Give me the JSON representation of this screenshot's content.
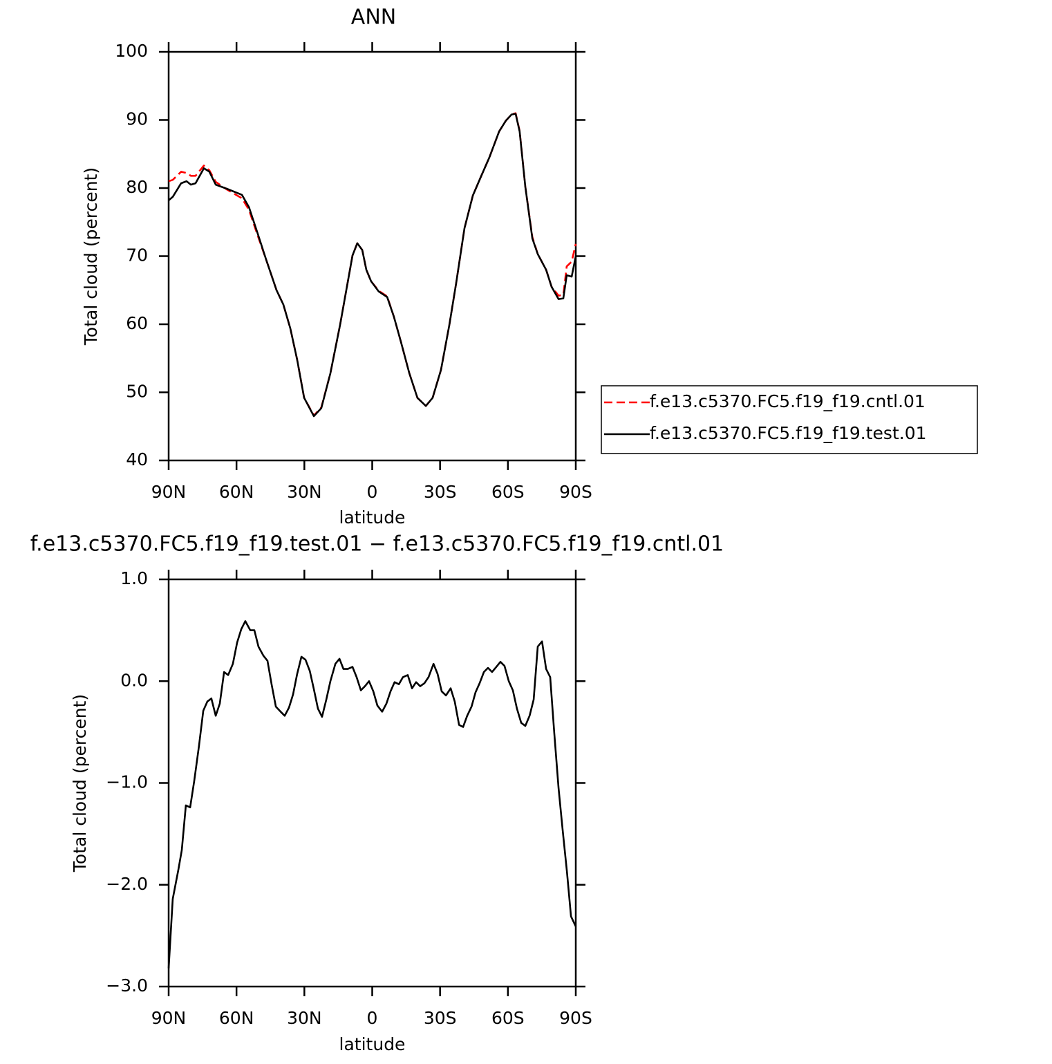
{
  "chart_data": [
    {
      "type": "line",
      "title": "ANN",
      "xlabel": "latitude",
      "ylabel": "Total cloud (percent)",
      "x": [
        90,
        88.2,
        84.5,
        82.1,
        80.2,
        78.1,
        74.4,
        72,
        69.2,
        64.3,
        57.6,
        54.5,
        50.9,
        46.9,
        42.3,
        39.3,
        36.2,
        33.2,
        30.1,
        25.8,
        22.5,
        18.5,
        14.2,
        8.7,
        6.6,
        4.4,
        2.6,
        0.5,
        -2.9,
        -6.6,
        -9.6,
        -12.7,
        -16.4,
        -20,
        -23.7,
        -26.7,
        -30.4,
        -34.1,
        -37.1,
        -40.8,
        -44.5,
        -48.1,
        -51.8,
        -56.1,
        -59.1,
        -61.6,
        -63.4,
        -65.2,
        -67.7,
        -70.8,
        -73.2,
        -76.9,
        -79.3,
        -82.4,
        -84.5,
        -86,
        -88.2,
        -90
      ],
      "series": [
        {
          "name": "f.e13.c5370.FC5.f19_f19.cntl.01",
          "color": "#ff0000",
          "dashed": true,
          "values": [
            81,
            81.2,
            82.4,
            82.2,
            81.8,
            81.8,
            83.3,
            82.6,
            80.9,
            79.8,
            78.5,
            76.8,
            73.3,
            69.5,
            65,
            62.9,
            59.4,
            54.8,
            49.2,
            46.6,
            47.8,
            52.8,
            59.9,
            70.1,
            71.9,
            70.9,
            68,
            66.3,
            64.9,
            64.1,
            61.1,
            57.4,
            52.8,
            49.2,
            48,
            49.2,
            53.3,
            59.9,
            66,
            74.1,
            78.9,
            81.7,
            84.5,
            88.3,
            89.9,
            90.8,
            91,
            88.4,
            80.2,
            72.8,
            70.3,
            68,
            65.5,
            64.2,
            64.3,
            68.5,
            69.2,
            71.8
          ]
        },
        {
          "name": "f.e13.c5370.FC5.f19_f19.test.01",
          "color": "#000000",
          "dashed": false,
          "values": [
            78.2,
            78.7,
            80.7,
            81,
            80.5,
            80.7,
            82.9,
            82.4,
            80.5,
            79.9,
            79,
            77.2,
            73.6,
            69.5,
            65,
            62.9,
            59.4,
            54.8,
            49.2,
            46.5,
            47.7,
            52.8,
            59.9,
            70.1,
            71.9,
            70.9,
            68,
            66.3,
            64.8,
            64,
            61.1,
            57.4,
            52.8,
            49.2,
            48,
            49.2,
            53.3,
            59.9,
            66,
            74.1,
            78.9,
            81.7,
            84.5,
            88.3,
            89.9,
            90.8,
            90.9,
            88.3,
            80.2,
            72.6,
            70.3,
            68,
            65.5,
            63.7,
            63.8,
            67.2,
            67,
            70
          ]
        }
      ],
      "xlim": [
        90,
        -90
      ],
      "xticks": [
        {
          "value": 90,
          "label": "90N"
        },
        {
          "value": 60,
          "label": "60N"
        },
        {
          "value": 30,
          "label": "30N"
        },
        0,
        {
          "value": -30,
          "label": "30S"
        },
        {
          "value": -60,
          "label": "60S"
        },
        {
          "value": -90,
          "label": "90S"
        }
      ],
      "ylim": [
        40,
        100
      ],
      "yticks": [
        40,
        50,
        60,
        70,
        80,
        90,
        100
      ],
      "legend": "right"
    },
    {
      "type": "line",
      "title": "f.e13.c5370.FC5.f19_f19.test.01 − f.e13.c5370.FC5.f19_f19.cntl.01",
      "xlabel": "latitude",
      "ylabel": "Total cloud (percent)",
      "x": [
        90,
        88.2,
        85.7,
        84.2,
        82.4,
        80.5,
        78.7,
        76.6,
        74.7,
        72.9,
        71.1,
        69.2,
        67.4,
        65.5,
        63.7,
        61.6,
        59.7,
        57.9,
        56.1,
        53.9,
        52.1,
        50.3,
        48.1,
        46.3,
        44.5,
        42.6,
        40.5,
        38.7,
        36.8,
        35,
        33.2,
        31.3,
        29.5,
        27.6,
        25.8,
        24,
        22.2,
        20.3,
        18.5,
        16.3,
        14.5,
        12.7,
        10.8,
        8.7,
        6.9,
        5,
        3.2,
        1.4,
        -0.5,
        -2.3,
        -4.4,
        -6.3,
        -8.1,
        -9.9,
        -11.8,
        -13.6,
        -15.7,
        -17.6,
        -19.4,
        -21.2,
        -23.1,
        -24.9,
        -27.1,
        -28.9,
        -30.7,
        -32.6,
        -34.7,
        -36.5,
        -38.4,
        -40.2,
        -42,
        -43.9,
        -45.7,
        -47.5,
        -49.4,
        -51.2,
        -53,
        -54.9,
        -56.7,
        -58.5,
        -60.4,
        -62.2,
        -64,
        -65.9,
        -67.7,
        -69.6,
        -71.4,
        -73.2,
        -75.1,
        -76.9,
        -78.7,
        -80.5,
        -82.4,
        -84.2,
        -86.1,
        -87.9,
        -90
      ],
      "values": [
        -2.82,
        -2.14,
        -1.85,
        -1.66,
        -1.22,
        -1.24,
        -0.98,
        -0.64,
        -0.29,
        -0.2,
        -0.17,
        -0.34,
        -0.22,
        0.09,
        0.06,
        0.17,
        0.38,
        0.51,
        0.59,
        0.5,
        0.5,
        0.34,
        0.25,
        0.2,
        -0.03,
        -0.25,
        -0.3,
        -0.34,
        -0.26,
        -0.13,
        0.07,
        0.24,
        0.21,
        0.1,
        -0.08,
        -0.27,
        -0.35,
        -0.18,
        0,
        0.17,
        0.22,
        0.12,
        0.12,
        0.14,
        0.04,
        -0.09,
        -0.05,
        0,
        -0.1,
        -0.24,
        -0.3,
        -0.22,
        -0.1,
        -0.01,
        -0.03,
        0.04,
        0.06,
        -0.07,
        -0.01,
        -0.05,
        -0.02,
        0.04,
        0.17,
        0.07,
        -0.1,
        -0.14,
        -0.07,
        -0.2,
        -0.43,
        -0.45,
        -0.34,
        -0.25,
        -0.11,
        -0.02,
        0.09,
        0.13,
        0.09,
        0.14,
        0.19,
        0.15,
        0,
        -0.09,
        -0.27,
        -0.41,
        -0.44,
        -0.34,
        -0.18,
        0.34,
        0.39,
        0.12,
        0.04,
        -0.51,
        -1.05,
        -1.46,
        -1.87,
        -2.31,
        -2.41
      ],
      "color": "#000000",
      "xlim": [
        90,
        -90
      ],
      "xticks": [
        {
          "value": 90,
          "label": "90N"
        },
        {
          "value": 60,
          "label": "60N"
        },
        {
          "value": 30,
          "label": "30N"
        },
        0,
        {
          "value": -30,
          "label": "30S"
        },
        {
          "value": -60,
          "label": "60S"
        },
        {
          "value": -90,
          "label": "90S"
        }
      ],
      "ylim": [
        -3,
        1
      ],
      "yticks": [
        {
          "value": -3,
          "label": "−3.0"
        },
        {
          "value": -2,
          "label": "−2.0"
        },
        {
          "value": -1,
          "label": "−1.0"
        },
        {
          "value": 0,
          "label": "0.0"
        },
        {
          "value": 1,
          "label": "1.0"
        }
      ]
    }
  ]
}
